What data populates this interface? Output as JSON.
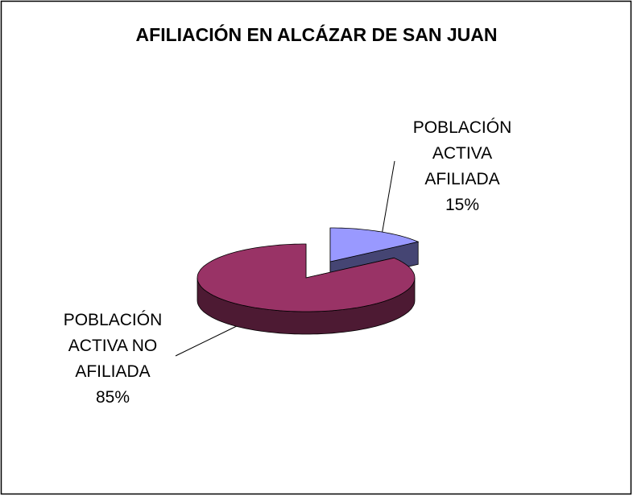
{
  "chart_data": {
    "type": "pie",
    "title": "AFILIACIÓN EN ALCÁZAR DE SAN JUAN",
    "categories": [
      "POBLACIÓN ACTIVA AFILIADA",
      "POBLACIÓN ACTIVA NO AFILIADA"
    ],
    "values": [
      15,
      85
    ],
    "value_labels": [
      "15%",
      "85%"
    ],
    "colors": [
      "#9999ff",
      "#993366"
    ]
  }
}
